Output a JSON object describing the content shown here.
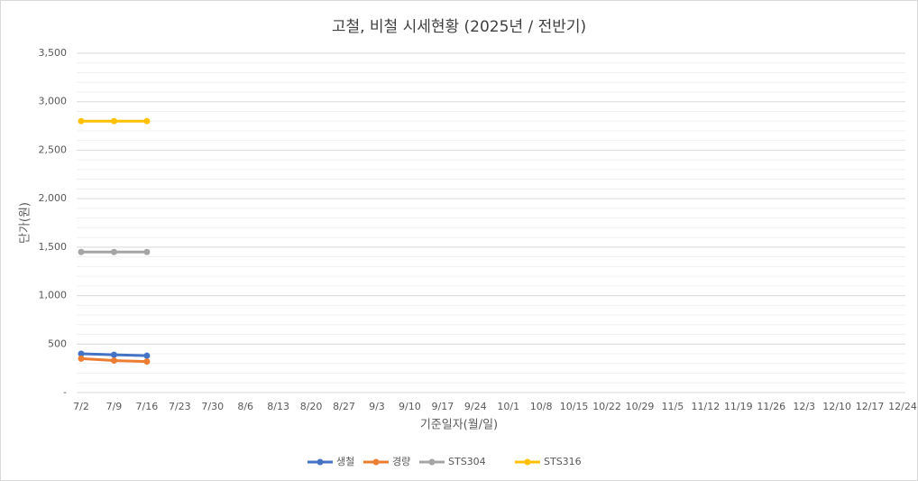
{
  "chart_data": {
    "type": "line",
    "title": "고철, 비철 시세현황 (2025년 / 전반기)",
    "x_label": "기준일자(월/일)",
    "y_label": "단가(원)",
    "categories": [
      "7/2",
      "7/9",
      "7/16",
      "7/23",
      "7/30",
      "8/6",
      "8/13",
      "8/20",
      "8/27",
      "9/3",
      "9/10",
      "9/17",
      "9/24",
      "10/1",
      "10/8",
      "10/15",
      "10/22",
      "10/29",
      "11/5",
      "11/12",
      "11/19",
      "11/26",
      "12/3",
      "12/10",
      "12/17",
      "12/24"
    ],
    "series": [
      {
        "name": "생철",
        "color": "#4472c4",
        "values": [
          400,
          390,
          380,
          null,
          null,
          null,
          null,
          null,
          null,
          null,
          null,
          null,
          null,
          null,
          null,
          null,
          null,
          null,
          null,
          null,
          null,
          null,
          null,
          null,
          null,
          null
        ]
      },
      {
        "name": "경량",
        "color": "#ed7d31",
        "values": [
          350,
          330,
          320,
          null,
          null,
          null,
          null,
          null,
          null,
          null,
          null,
          null,
          null,
          null,
          null,
          null,
          null,
          null,
          null,
          null,
          null,
          null,
          null,
          null,
          null,
          null
        ]
      },
      {
        "name": "STS304",
        "color": "#a5a5a5",
        "values": [
          1450,
          1450,
          1450,
          null,
          null,
          null,
          null,
          null,
          null,
          null,
          null,
          null,
          null,
          null,
          null,
          null,
          null,
          null,
          null,
          null,
          null,
          null,
          null,
          null,
          null,
          null
        ]
      },
      {
        "name": "STS316",
        "color": "#ffc000",
        "values": [
          2800,
          2800,
          2800,
          null,
          null,
          null,
          null,
          null,
          null,
          null,
          null,
          null,
          null,
          null,
          null,
          null,
          null,
          null,
          null,
          null,
          null,
          null,
          null,
          null,
          null,
          null
        ]
      }
    ],
    "ylim": [
      0,
      3500
    ],
    "yticks": [
      {
        "value": 0,
        "label": "-"
      },
      500,
      {
        "value": 1000,
        "label": "1,000"
      },
      {
        "value": 1500,
        "label": "1,500"
      },
      {
        "value": 2000,
        "label": "2,000"
      },
      {
        "value": 2500,
        "label": "2,500"
      },
      {
        "value": 3000,
        "label": "3,000"
      },
      {
        "value": 3500,
        "label": "3,500"
      }
    ],
    "grid": true,
    "minor_grid": true,
    "legend": "bottom"
  }
}
